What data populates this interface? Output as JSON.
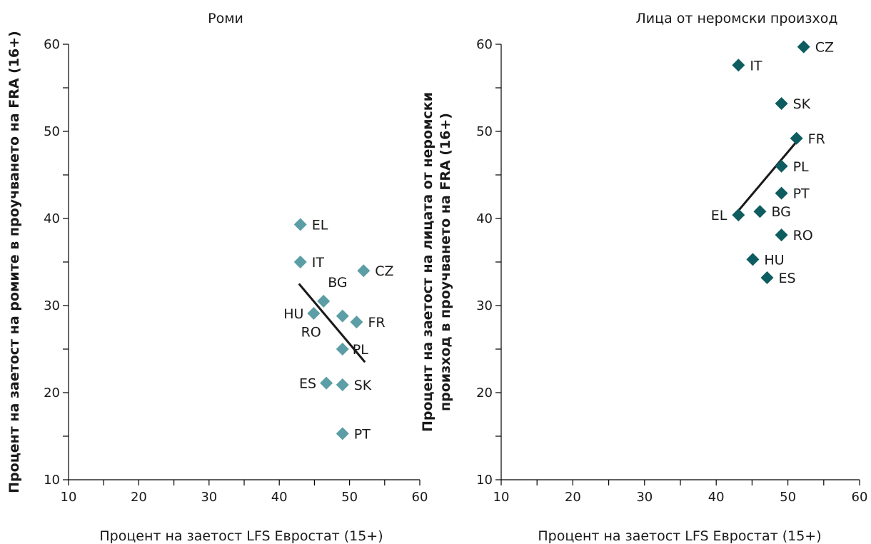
{
  "chart_data": [
    {
      "type": "scatter",
      "title": "Роми",
      "xlabel": "Процент на заетост LFS Евростат (15+)",
      "ylabel": [
        "Процент на заетост на ромите в проучването на FRA (16+)"
      ],
      "xlim": [
        10,
        60
      ],
      "ylim": [
        10,
        60
      ],
      "xticks": [
        10,
        20,
        30,
        40,
        50,
        60
      ],
      "yticks": [
        10,
        20,
        30,
        40,
        50,
        60
      ],
      "grid": false,
      "marker_color": "#5b9ea6",
      "points": [
        {
          "label": "EL",
          "x": 43,
          "y": 39.3
        },
        {
          "label": "IT",
          "x": 43,
          "y": 35
        },
        {
          "label": "CZ",
          "x": 52,
          "y": 34
        },
        {
          "label": "BG",
          "x": 46.3,
          "y": 30.5
        },
        {
          "label": "HU",
          "x": 44.9,
          "y": 29.1
        },
        {
          "label": "RO",
          "x": 49,
          "y": 28.8
        },
        {
          "label": "FR",
          "x": 51,
          "y": 28.1
        },
        {
          "label": "PL",
          "x": 49,
          "y": 25
        },
        {
          "label": "ES",
          "x": 46.7,
          "y": 21.1
        },
        {
          "label": "SK",
          "x": 49,
          "y": 20.9
        },
        {
          "label": "PT",
          "x": 49,
          "y": 15.3
        }
      ],
      "trendline": [
        [
          42.8,
          32.5
        ],
        [
          52.2,
          23.5
        ]
      ]
    },
    {
      "type": "scatter",
      "title": "Лица от неромски произход",
      "xlabel": "Процент на заетост LFS Евростат (15+)",
      "ylabel": [
        "Процент на заетост на лицата от неромски",
        "произход в проучването на FRA (16+)"
      ],
      "xlim": [
        10,
        60
      ],
      "ylim": [
        10,
        60
      ],
      "xticks": [
        10,
        20,
        30,
        40,
        50,
        60
      ],
      "yticks": [
        10,
        20,
        30,
        40,
        50,
        60
      ],
      "grid": false,
      "marker_color": "#0d5c5f",
      "points": [
        {
          "label": "CZ",
          "x": 52.2,
          "y": 59.7
        },
        {
          "label": "IT",
          "x": 43.1,
          "y": 57.6
        },
        {
          "label": "SK",
          "x": 49.1,
          "y": 53.2
        },
        {
          "label": "FR",
          "x": 51.2,
          "y": 49.2
        },
        {
          "label": "PL",
          "x": 49.1,
          "y": 46
        },
        {
          "label": "PT",
          "x": 49.1,
          "y": 42.9
        },
        {
          "label": "BG",
          "x": 46.1,
          "y": 40.8
        },
        {
          "label": "EL",
          "x": 43.1,
          "y": 40.4
        },
        {
          "label": "RO",
          "x": 49.1,
          "y": 38.1
        },
        {
          "label": "HU",
          "x": 45.1,
          "y": 35.3
        },
        {
          "label": "ES",
          "x": 47.1,
          "y": 33.2
        }
      ],
      "trendline": [
        [
          43.1,
          40.9
        ],
        [
          51.5,
          49.1
        ]
      ]
    }
  ]
}
